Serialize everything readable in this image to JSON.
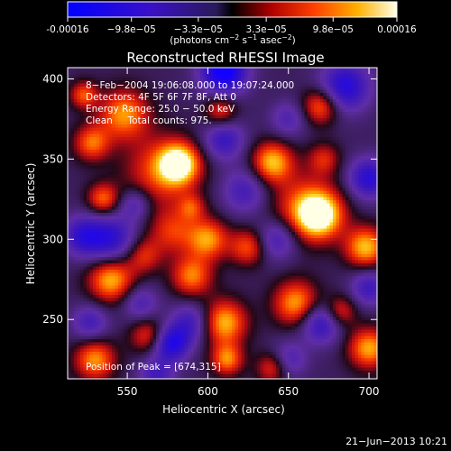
{
  "colorbar": {
    "tick_labels": [
      "-0.00016",
      "−9.8e−05",
      "−3.3e−05",
      "3.3e−05",
      "9.8e−05",
      "0.00016"
    ],
    "tick_values": [
      -0.00016,
      -9.8e-05,
      -3.3e-05,
      3.3e-05,
      9.8e-05,
      0.00016
    ],
    "units_prefix": "(photons cm",
    "units_exp1": "−2",
    "units_mid": " s",
    "units_exp2": "−1",
    "units_mid2": " asec",
    "units_exp3": "−2",
    "units_suffix": ")",
    "range": [
      -0.00016,
      0.00016
    ]
  },
  "chart_data": {
    "type": "heatmap",
    "title": "Reconstructed RHESSI Image",
    "xlabel": "Heliocentric X (arcsec)",
    "ylabel": "Heliocentric Y (arcsec)",
    "xlim": [
      513,
      705
    ],
    "ylim": [
      213,
      407
    ],
    "x_ticks": [
      550,
      600,
      650,
      700
    ],
    "x_tick_labels": [
      "550",
      "600",
      "650",
      "700"
    ],
    "y_ticks": [
      250,
      300,
      350,
      400
    ],
    "y_tick_labels": [
      "250",
      "300",
      "350",
      "400"
    ],
    "info_lines": [
      "8−Feb−2004 19:06:08.000 to 19:07:24.000",
      "Detectors: 4F 5F 6F 7F 8F, Att 0",
      "Energy Range: 25.0 − 50.0 keV",
      "Clean     Total counts: 975."
    ],
    "peak_label": "Position of Peak = [674,315]",
    "peak": [
      674,
      315
    ],
    "blobs": [
      {
        "x": 582,
        "y": 347,
        "s": 9,
        "a": 1.0
      },
      {
        "x": 570,
        "y": 342,
        "s": 16,
        "a": 0.55
      },
      {
        "x": 669,
        "y": 315,
        "s": 10,
        "a": 1.0
      },
      {
        "x": 660,
        "y": 320,
        "s": 15,
        "a": 0.55
      },
      {
        "x": 698,
        "y": 295,
        "s": 9,
        "a": 0.85
      },
      {
        "x": 600,
        "y": 300,
        "s": 9,
        "a": 0.75
      },
      {
        "x": 578,
        "y": 305,
        "s": 10,
        "a": 0.5
      },
      {
        "x": 590,
        "y": 277,
        "s": 9,
        "a": 0.7
      },
      {
        "x": 640,
        "y": 348,
        "s": 9,
        "a": 0.85
      },
      {
        "x": 548,
        "y": 378,
        "s": 11,
        "a": 0.75
      },
      {
        "x": 528,
        "y": 360,
        "s": 8,
        "a": 0.65
      },
      {
        "x": 535,
        "y": 325,
        "s": 7,
        "a": 0.65
      },
      {
        "x": 540,
        "y": 275,
        "s": 10,
        "a": 0.85
      },
      {
        "x": 560,
        "y": 290,
        "s": 8,
        "a": 0.5
      },
      {
        "x": 530,
        "y": 225,
        "s": 9,
        "a": 0.75
      },
      {
        "x": 563,
        "y": 240,
        "s": 8,
        "a": 0.55
      },
      {
        "x": 610,
        "y": 248,
        "s": 10,
        "a": 0.85
      },
      {
        "x": 625,
        "y": 295,
        "s": 8,
        "a": 0.6
      },
      {
        "x": 655,
        "y": 260,
        "s": 10,
        "a": 0.8
      },
      {
        "x": 682,
        "y": 255,
        "s": 7,
        "a": 0.55
      },
      {
        "x": 700,
        "y": 232,
        "s": 9,
        "a": 0.8
      },
      {
        "x": 612,
        "y": 225,
        "s": 7,
        "a": 0.7
      },
      {
        "x": 640,
        "y": 220,
        "s": 7,
        "a": 0.55
      },
      {
        "x": 670,
        "y": 383,
        "s": 8,
        "a": 0.7
      },
      {
        "x": 608,
        "y": 380,
        "s": 7,
        "a": 0.55
      },
      {
        "x": 590,
        "y": 320,
        "s": 6,
        "a": 0.45
      },
      {
        "x": 523,
        "y": 390,
        "s": 6,
        "a": 0.6
      },
      {
        "x": 672,
        "y": 350,
        "s": 7,
        "a": 0.45
      },
      {
        "x": 610,
        "y": 405,
        "s": 10,
        "a": -1.1
      },
      {
        "x": 685,
        "y": 395,
        "s": 11,
        "a": -0.8
      },
      {
        "x": 610,
        "y": 362,
        "s": 9,
        "a": -0.6
      },
      {
        "x": 540,
        "y": 300,
        "s": 11,
        "a": -0.7
      },
      {
        "x": 522,
        "y": 302,
        "s": 9,
        "a": -0.6
      },
      {
        "x": 590,
        "y": 248,
        "s": 9,
        "a": -0.55
      },
      {
        "x": 577,
        "y": 235,
        "s": 8,
        "a": -0.85
      },
      {
        "x": 643,
        "y": 300,
        "s": 9,
        "a": -0.55
      },
      {
        "x": 670,
        "y": 248,
        "s": 9,
        "a": -0.7
      },
      {
        "x": 700,
        "y": 270,
        "s": 8,
        "a": -0.55
      },
      {
        "x": 700,
        "y": 338,
        "s": 9,
        "a": -0.75
      },
      {
        "x": 623,
        "y": 330,
        "s": 10,
        "a": -0.5
      },
      {
        "x": 555,
        "y": 322,
        "s": 7,
        "a": -0.45
      },
      {
        "x": 558,
        "y": 260,
        "s": 8,
        "a": -0.45
      },
      {
        "x": 650,
        "y": 225,
        "s": 8,
        "a": -0.45
      },
      {
        "x": 527,
        "y": 248,
        "s": 8,
        "a": -0.5
      },
      {
        "x": 650,
        "y": 375,
        "s": 8,
        "a": -0.4
      },
      {
        "x": 568,
        "y": 215,
        "s": 8,
        "a": -0.5
      }
    ]
  },
  "timestamp": "21−Jun−2013 10:21"
}
